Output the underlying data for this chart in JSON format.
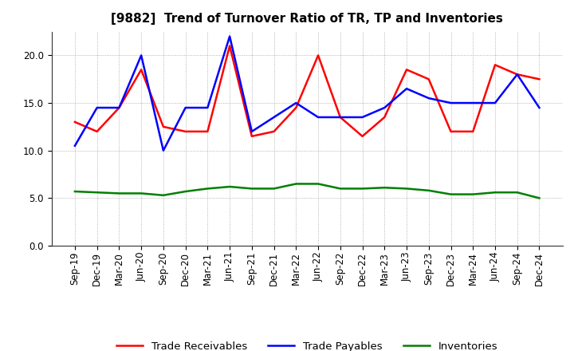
{
  "title": "[9882]  Trend of Turnover Ratio of TR, TP and Inventories",
  "labels": [
    "Sep-19",
    "Dec-19",
    "Mar-20",
    "Jun-20",
    "Sep-20",
    "Dec-20",
    "Mar-21",
    "Jun-21",
    "Sep-21",
    "Dec-21",
    "Mar-22",
    "Jun-22",
    "Sep-22",
    "Dec-22",
    "Mar-23",
    "Jun-23",
    "Sep-23",
    "Dec-23",
    "Mar-24",
    "Jun-24",
    "Sep-24",
    "Dec-24"
  ],
  "trade_receivables": [
    13.0,
    12.0,
    14.5,
    18.5,
    12.5,
    12.0,
    12.0,
    21.0,
    11.5,
    12.0,
    14.5,
    20.0,
    13.5,
    11.5,
    13.5,
    18.5,
    17.5,
    12.0,
    12.0,
    19.0,
    18.0,
    17.5
  ],
  "trade_payables": [
    10.5,
    14.5,
    14.5,
    20.0,
    10.0,
    14.5,
    14.5,
    22.0,
    12.0,
    13.5,
    15.0,
    13.5,
    13.5,
    13.5,
    14.5,
    16.5,
    15.5,
    15.0,
    15.0,
    15.0,
    18.0,
    14.5
  ],
  "inventories": [
    5.7,
    5.6,
    5.5,
    5.5,
    5.3,
    5.7,
    6.0,
    6.2,
    6.0,
    6.0,
    6.5,
    6.5,
    6.0,
    6.0,
    6.1,
    6.0,
    5.8,
    5.4,
    5.4,
    5.6,
    5.6,
    5.0
  ],
  "ylim": [
    0,
    22.5
  ],
  "yticks": [
    0.0,
    5.0,
    10.0,
    15.0,
    20.0
  ],
  "color_tr": "#ff0000",
  "color_tp": "#0000ff",
  "color_inv": "#008000",
  "legend_tr": "Trade Receivables",
  "legend_tp": "Trade Payables",
  "legend_inv": "Inventories",
  "bg_color": "#ffffff",
  "plot_bg_color": "#ffffff",
  "grid_color": "#888888",
  "title_fontsize": 11,
  "axis_fontsize": 8.5,
  "legend_fontsize": 9.5,
  "linewidth": 1.8
}
